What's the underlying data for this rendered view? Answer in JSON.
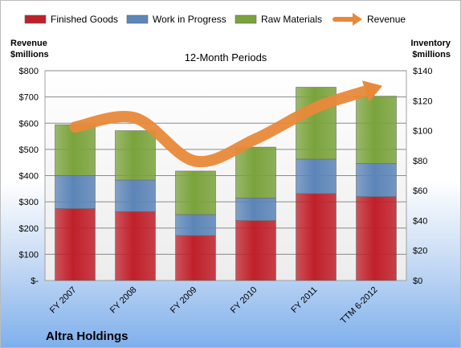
{
  "chart_data": {
    "type": "bar",
    "stacked": true,
    "title": "12-Month Periods",
    "company": "Altra Holdings",
    "categories": [
      "FY 2007",
      "FY 2008",
      "FY 2009",
      "FY 2010",
      "FY 2011",
      "TTM 6-2012"
    ],
    "series": [
      {
        "name": "Finished Goods",
        "color": "#c0202a",
        "values": [
          48,
          46,
          30,
          40,
          58,
          56
        ]
      },
      {
        "name": "Work in Progress",
        "color": "#5c85b8",
        "values": [
          22,
          21,
          14,
          15,
          23,
          22
        ]
      },
      {
        "name": "Raw Materials",
        "color": "#7aa33c",
        "values": [
          34,
          33,
          29,
          34,
          48,
          45
        ]
      }
    ],
    "line_series": {
      "name": "Revenue",
      "color": "#e8893a",
      "values": [
        585,
        620,
        455,
        540,
        660,
        735
      ]
    },
    "left_axis": {
      "label_line1": "Revenue",
      "label_line2": "$millions",
      "range": [
        0,
        800
      ],
      "ticks": [
        "$-",
        "$100",
        "$200",
        "$300",
        "$400",
        "$500",
        "$600",
        "$700",
        "$800"
      ]
    },
    "right_axis": {
      "label_line1": "Inventory",
      "label_line2": "$millions",
      "range": [
        0,
        140
      ],
      "ticks": [
        "$0",
        "$20",
        "$40",
        "$60",
        "$80",
        "$100",
        "$120",
        "$140"
      ]
    },
    "grid": true,
    "legend_position": "top"
  }
}
